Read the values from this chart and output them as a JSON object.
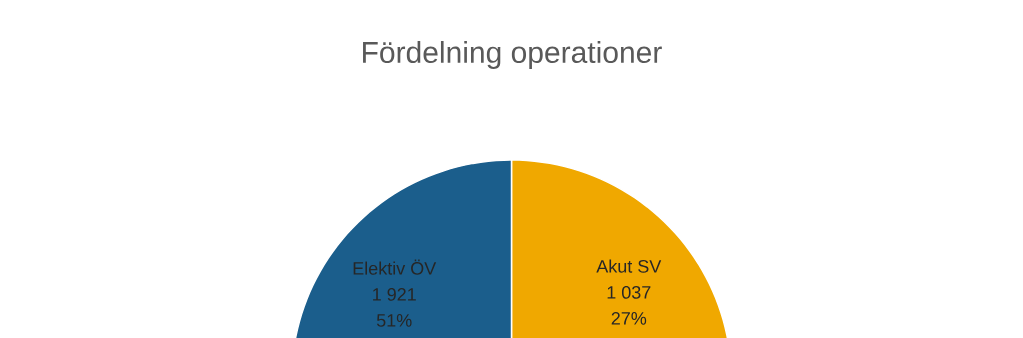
{
  "chart_data": {
    "type": "pie",
    "title": "Fördelning operationer",
    "categories": [
      "Elektiv ÖV",
      "Akut SV"
    ],
    "values": [
      1921,
      1037
    ],
    "colors": [
      "#1b5e8c",
      "#f0a800"
    ],
    "value_labels": [
      "1 921",
      "1 037"
    ],
    "annotations": [
      "51%",
      "27%"
    ]
  }
}
